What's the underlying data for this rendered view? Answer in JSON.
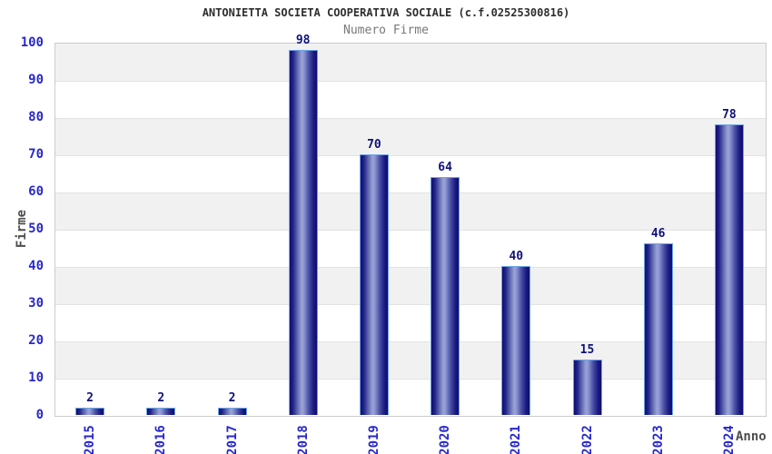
{
  "chart_data": {
    "type": "bar",
    "title": "ANTONIETTA SOCIETA COOPERATIVA SOCIALE (c.f.02525300816)",
    "subtitle": "Numero Firme",
    "xlabel": "Anno",
    "ylabel": "Firme",
    "categories": [
      "2015",
      "2016",
      "2017",
      "2018",
      "2019",
      "2020",
      "2021",
      "2022",
      "2023",
      "2024"
    ],
    "values": [
      2,
      2,
      2,
      98,
      70,
      64,
      40,
      15,
      46,
      78
    ],
    "ylim": [
      0,
      100
    ],
    "ytick_step": 10,
    "grid": "horizontal-bands-alternating",
    "legend": "none",
    "colors": {
      "bar_dark": "#0e0e70",
      "bar_highlight": "#9aa3d8",
      "bar_border": "#6ba3e6",
      "tick_label": "#2828cc",
      "value_label": "#10107a",
      "band_gray": "#f1f1f1",
      "band_white": "#ffffff",
      "title": "#2e2e2e",
      "subtitle": "#787878",
      "axis_title": "#4d4d4d",
      "plot_border": "#cccccc"
    }
  }
}
